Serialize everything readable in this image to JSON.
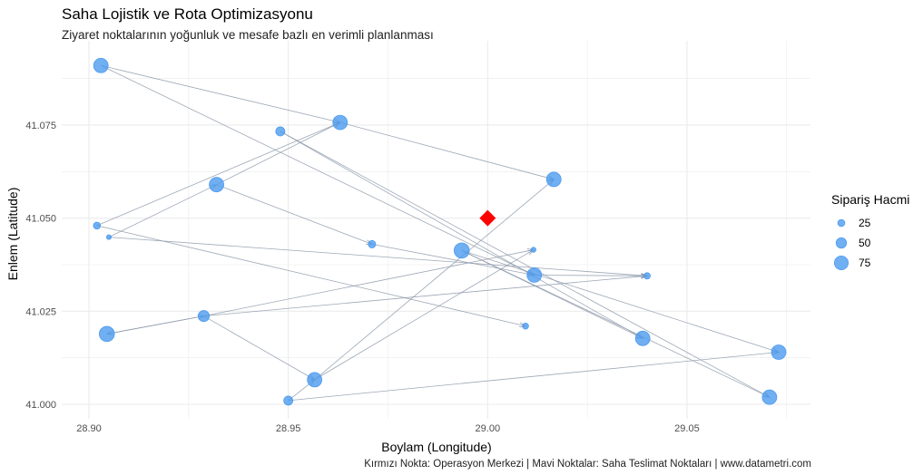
{
  "chart_data": {
    "type": "scatter",
    "title": "Saha Lojistik ve Rota Optimizasyonu",
    "subtitle": "Ziyaret noktalarının yoğunluk ve mesafe bazlı en verimli planlanması",
    "caption": "Kırmızı Nokta: Operasyon Merkezi | Mavi Noktalar: Saha Teslimat Noktaları | www.datametri.com",
    "xlabel": "Boylam (Longitude)",
    "ylabel": "Enlem (Latitude)",
    "xlim": [
      28.887,
      29.081
    ],
    "ylim": [
      40.996,
      41.096
    ],
    "xticks": [
      "28.90",
      "28.95",
      "29.00",
      "29.05"
    ],
    "yticks": [
      "41.000",
      "41.025",
      "41.050",
      "41.075"
    ],
    "grid": true,
    "legend": {
      "title": "Sipariş Hacmi",
      "position": "right",
      "sizes": [
        25,
        50,
        75
      ],
      "labels": [
        "25",
        "50",
        "75"
      ]
    },
    "point_color": "#4C9BEF",
    "line_color": "#8C99AA",
    "center": {
      "x": 29.0,
      "y": 41.05,
      "color": "#FF0000",
      "shape": "diamond"
    },
    "points": [
      {
        "x": 28.903,
        "y": 41.091,
        "size": 80
      },
      {
        "x": 28.963,
        "y": 41.0757,
        "size": 80
      },
      {
        "x": 28.948,
        "y": 41.0733,
        "size": 40
      },
      {
        "x": 29.0166,
        "y": 41.0604,
        "size": 80
      },
      {
        "x": 28.932,
        "y": 41.059,
        "size": 80
      },
      {
        "x": 28.902,
        "y": 41.048,
        "size": 25
      },
      {
        "x": 28.905,
        "y": 41.0449,
        "size": 8
      },
      {
        "x": 28.971,
        "y": 41.043,
        "size": 28
      },
      {
        "x": 28.9935,
        "y": 41.0413,
        "size": 85
      },
      {
        "x": 29.0115,
        "y": 41.0415,
        "size": 10
      },
      {
        "x": 29.0117,
        "y": 41.0347,
        "size": 80
      },
      {
        "x": 29.04,
        "y": 41.0345,
        "size": 20
      },
      {
        "x": 28.9288,
        "y": 41.0237,
        "size": 55
      },
      {
        "x": 29.0095,
        "y": 41.021,
        "size": 18
      },
      {
        "x": 28.9045,
        "y": 41.0189,
        "size": 85
      },
      {
        "x": 29.0389,
        "y": 41.0177,
        "size": 80
      },
      {
        "x": 29.073,
        "y": 41.014,
        "size": 80
      },
      {
        "x": 28.9566,
        "y": 41.0066,
        "size": 80
      },
      {
        "x": 29.0707,
        "y": 41.0019,
        "size": 80
      },
      {
        "x": 28.95,
        "y": 41.001,
        "size": 40
      }
    ],
    "routes": [
      [
        0,
        1
      ],
      [
        0,
        10
      ],
      [
        1,
        3
      ],
      [
        5,
        1
      ],
      [
        6,
        4
      ],
      [
        4,
        1
      ],
      [
        2,
        15
      ],
      [
        2,
        18
      ],
      [
        4,
        7
      ],
      [
        7,
        10
      ],
      [
        5,
        13
      ],
      [
        6,
        11
      ],
      [
        14,
        12
      ],
      [
        12,
        14
      ],
      [
        12,
        9
      ],
      [
        12,
        11
      ],
      [
        12,
        17
      ],
      [
        17,
        3
      ],
      [
        17,
        9
      ],
      [
        19,
        17
      ],
      [
        19,
        16
      ],
      [
        8,
        16
      ],
      [
        8,
        18
      ],
      [
        10,
        11
      ],
      [
        8,
        15
      ]
    ]
  }
}
